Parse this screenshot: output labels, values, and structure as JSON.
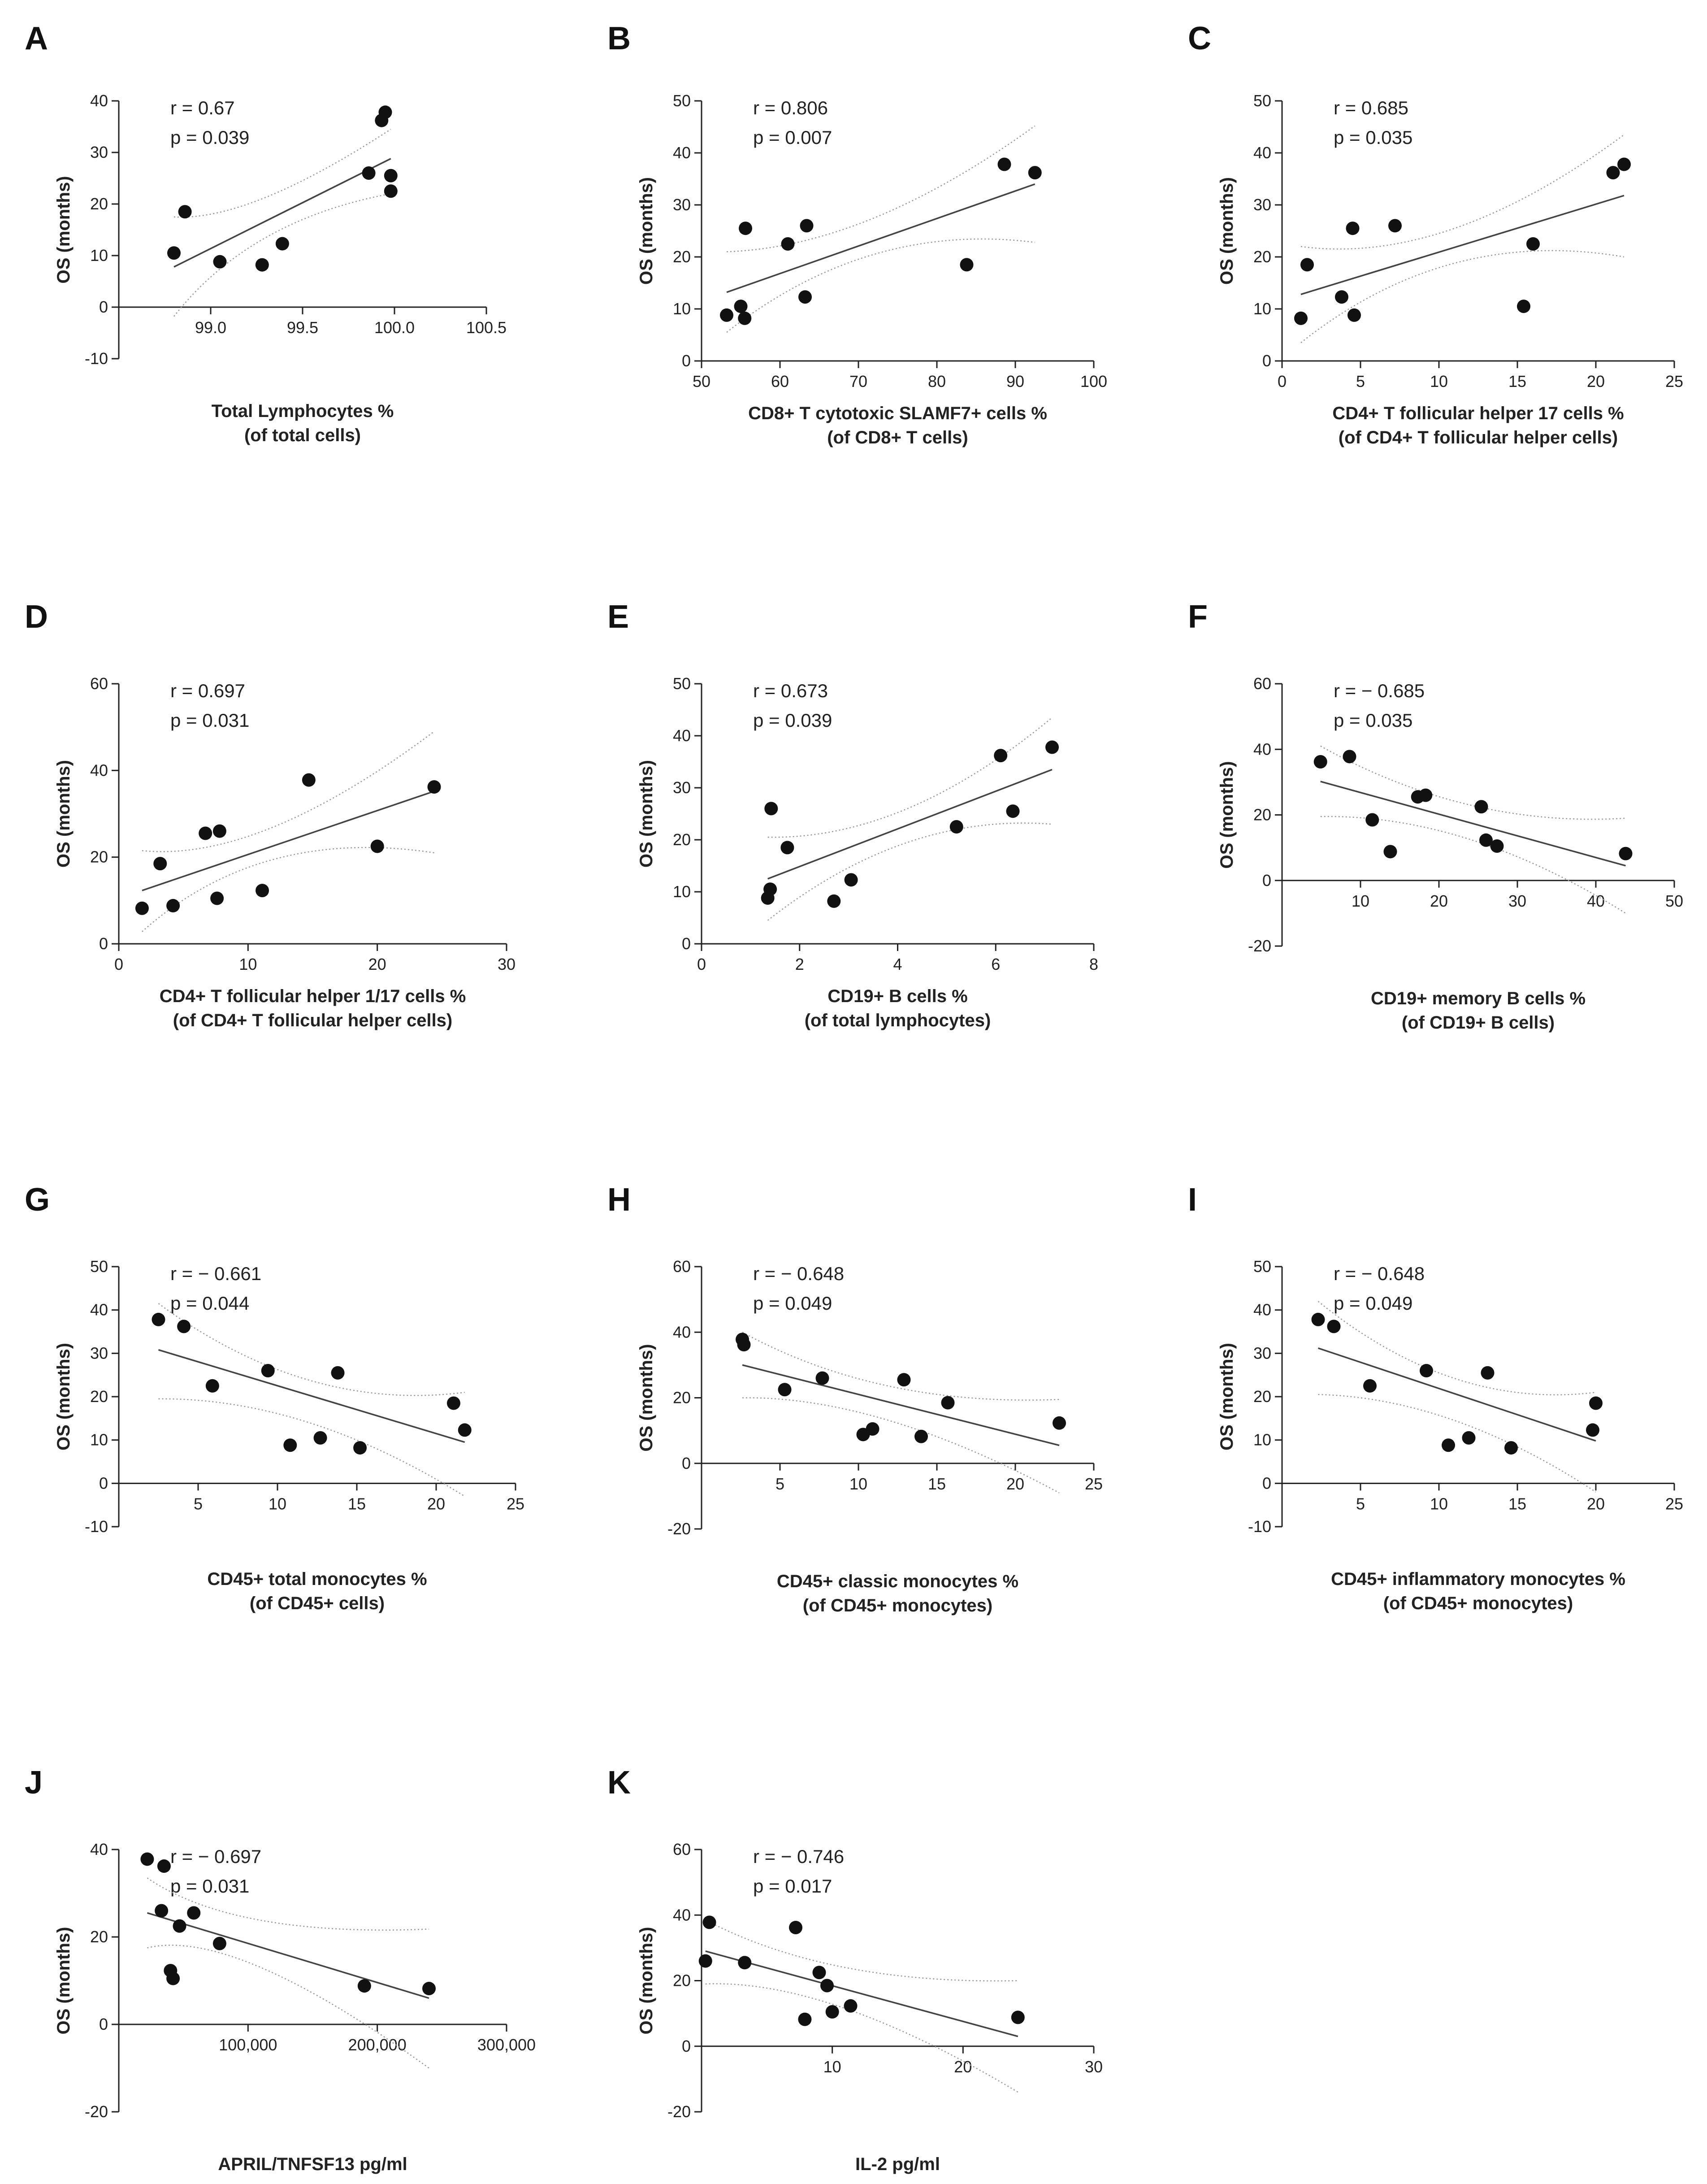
{
  "chart_data": [
    {
      "panel": "A",
      "type": "scatter",
      "stats": [
        "r = 0.67",
        "p = 0.039"
      ],
      "ylabel": "OS (months)",
      "xlabel": [
        "Total Lymphocytes %",
        "(of total cells)"
      ],
      "xlim": [
        98.5,
        100.5
      ],
      "ylim": [
        -10,
        40
      ],
      "xticks": [
        99.0,
        99.5,
        100.0,
        100.5
      ],
      "xtick_labels": [
        "99.0",
        "99.5",
        "100.0",
        "100.5"
      ],
      "yticks": [
        -10,
        0,
        10,
        20,
        30,
        40
      ],
      "ytick_labels": [
        "-10",
        "0",
        "10",
        "20",
        "30",
        "40"
      ],
      "x": [
        98.8,
        98.86,
        99.05,
        99.28,
        99.39,
        99.86,
        99.93,
        99.95,
        99.98,
        99.98
      ],
      "y": [
        10.5,
        18.5,
        8.8,
        8.2,
        12.3,
        26.0,
        36.2,
        37.8,
        22.5,
        25.5
      ],
      "fit": [
        [
          98.8,
          7.8
        ],
        [
          99.98,
          28.8
        ]
      ],
      "ci_upper": [
        [
          98.8,
          17.5
        ],
        [
          99.3,
          21.3
        ],
        [
          99.98,
          34.5
        ]
      ],
      "ci_lower": [
        [
          98.8,
          -1.8
        ],
        [
          99.3,
          13.5
        ],
        [
          99.98,
          22.0
        ]
      ]
    },
    {
      "panel": "B",
      "type": "scatter",
      "stats": [
        "r = 0.806",
        "p = 0.007"
      ],
      "ylabel": "OS (months)",
      "xlabel": [
        "CD8+ T cytotoxic SLAMF7+ cells %",
        "(of CD8+ T cells)"
      ],
      "xlim": [
        50,
        100
      ],
      "ylim": [
        0,
        50
      ],
      "xticks": [
        50,
        60,
        70,
        80,
        90,
        100
      ],
      "xtick_labels": [
        "50",
        "60",
        "70",
        "80",
        "90",
        "100"
      ],
      "yticks": [
        0,
        10,
        20,
        30,
        40,
        50
      ],
      "ytick_labels": [
        "0",
        "10",
        "20",
        "30",
        "40",
        "50"
      ],
      "x": [
        53.2,
        55.0,
        55.5,
        55.6,
        61.0,
        63.2,
        63.4,
        83.8,
        88.6,
        92.5
      ],
      "y": [
        8.8,
        10.5,
        8.2,
        25.5,
        22.5,
        12.3,
        26.0,
        18.5,
        37.8,
        36.2
      ],
      "fit": [
        [
          53.2,
          13.2
        ],
        [
          92.5,
          34.0
        ]
      ],
      "ci_upper": [
        [
          53.2,
          21.0
        ],
        [
          72,
          27.5
        ],
        [
          92.5,
          45.2
        ]
      ],
      "ci_lower": [
        [
          53.2,
          5.5
        ],
        [
          72,
          20.5
        ],
        [
          92.5,
          22.8
        ]
      ]
    },
    {
      "panel": "C",
      "type": "scatter",
      "stats": [
        "r = 0.685",
        "p = 0.035"
      ],
      "ylabel": "OS (months)",
      "xlabel": [
        "CD4+ T follicular helper 17 cells %",
        "(of CD4+ T follicular helper cells)"
      ],
      "xlim": [
        0,
        25
      ],
      "ylim": [
        0,
        50
      ],
      "xticks": [
        0,
        5,
        10,
        15,
        20,
        25
      ],
      "xtick_labels": [
        "0",
        "5",
        "10",
        "15",
        "20",
        "25"
      ],
      "yticks": [
        0,
        10,
        20,
        30,
        40,
        50
      ],
      "ytick_labels": [
        "0",
        "10",
        "20",
        "30",
        "40",
        "50"
      ],
      "x": [
        1.2,
        1.6,
        3.8,
        4.5,
        4.6,
        7.2,
        15.4,
        16.0,
        21.1,
        21.8
      ],
      "y": [
        8.2,
        18.5,
        12.3,
        25.5,
        8.8,
        26.0,
        10.5,
        22.5,
        36.2,
        37.8
      ],
      "fit": [
        [
          1.2,
          12.8
        ],
        [
          21.8,
          31.8
        ]
      ],
      "ci_upper": [
        [
          1.2,
          22.0
        ],
        [
          11,
          25.5
        ],
        [
          21.8,
          43.5
        ]
      ],
      "ci_lower": [
        [
          1.2,
          3.5
        ],
        [
          11,
          18.8
        ],
        [
          21.8,
          20.0
        ]
      ]
    },
    {
      "panel": "D",
      "type": "scatter",
      "stats": [
        "r = 0.697",
        "p = 0.031"
      ],
      "ylabel": "OS (months)",
      "xlabel": [
        "CD4+ T follicular helper 1/17 cells %",
        "(of CD4+ T follicular helper cells)"
      ],
      "xlim": [
        0,
        30
      ],
      "ylim": [
        0,
        60
      ],
      "xticks": [
        0,
        10,
        20,
        30
      ],
      "xtick_labels": [
        "0",
        "10",
        "20",
        "30"
      ],
      "yticks": [
        0,
        20,
        40,
        60
      ],
      "ytick_labels": [
        "0",
        "20",
        "40",
        "60"
      ],
      "x": [
        1.8,
        3.2,
        4.2,
        6.7,
        7.6,
        7.8,
        11.1,
        14.7,
        20.0,
        24.4
      ],
      "y": [
        8.2,
        18.5,
        8.8,
        25.5,
        10.5,
        26.0,
        12.3,
        37.8,
        22.5,
        36.2
      ],
      "fit": [
        [
          1.8,
          12.3
        ],
        [
          24.4,
          35.2
        ]
      ],
      "ci_upper": [
        [
          1.8,
          21.5
        ],
        [
          12,
          27.0
        ],
        [
          24.4,
          49.0
        ]
      ],
      "ci_lower": [
        [
          1.8,
          2.8
        ],
        [
          12,
          19.5
        ],
        [
          24.4,
          21.0
        ]
      ]
    },
    {
      "panel": "E",
      "type": "scatter",
      "stats": [
        "r = 0.673",
        "p = 0.039"
      ],
      "ylabel": "OS (months)",
      "xlabel": [
        "CD19+ B cells %",
        "(of total lymphocytes)"
      ],
      "xlim": [
        0,
        8
      ],
      "ylim": [
        0,
        50
      ],
      "xticks": [
        0,
        2,
        4,
        6,
        8
      ],
      "xtick_labels": [
        "0",
        "2",
        "4",
        "6",
        "8"
      ],
      "yticks": [
        0,
        10,
        20,
        30,
        40,
        50
      ],
      "ytick_labels": [
        "0",
        "10",
        "20",
        "30",
        "40",
        "50"
      ],
      "x": [
        1.35,
        1.4,
        1.42,
        1.75,
        2.7,
        3.05,
        5.2,
        6.1,
        6.35,
        7.15
      ],
      "y": [
        8.8,
        10.5,
        26.0,
        18.5,
        8.2,
        12.3,
        22.5,
        36.2,
        25.5,
        37.8
      ],
      "fit": [
        [
          1.35,
          12.5
        ],
        [
          7.15,
          33.5
        ]
      ],
      "ci_upper": [
        [
          1.35,
          20.5
        ],
        [
          4.2,
          26.0
        ],
        [
          7.15,
          43.5
        ]
      ],
      "ci_lower": [
        [
          1.35,
          4.5
        ],
        [
          4.2,
          19.5
        ],
        [
          7.15,
          23.0
        ]
      ]
    },
    {
      "panel": "F",
      "type": "scatter",
      "stats": [
        "r = − 0.685",
        "p = 0.035"
      ],
      "ylabel": "OS (months)",
      "xlabel": [
        "CD19+ memory B cells %",
        "(of CD19+ B cells)"
      ],
      "xlim": [
        0,
        50
      ],
      "ylim": [
        -20,
        60
      ],
      "xticks": [
        10,
        20,
        30,
        40,
        50
      ],
      "xtick_labels": [
        "10",
        "20",
        "30",
        "40",
        "50"
      ],
      "yticks": [
        -20,
        0,
        20,
        40,
        60
      ],
      "ytick_labels": [
        "-20",
        "0",
        "20",
        "40",
        "60"
      ],
      "x": [
        4.9,
        8.6,
        11.5,
        13.8,
        17.3,
        18.3,
        25.4,
        26.0,
        27.4,
        43.8
      ],
      "y": [
        36.2,
        37.8,
        18.5,
        8.8,
        25.5,
        26.0,
        22.5,
        12.3,
        10.5,
        8.2
      ],
      "fit": [
        [
          4.9,
          30.2
        ],
        [
          43.8,
          4.5
        ]
      ],
      "ci_upper": [
        [
          4.9,
          41.0
        ],
        [
          24,
          23.0
        ],
        [
          43.8,
          19.0
        ]
      ],
      "ci_lower": [
        [
          4.9,
          19.5
        ],
        [
          24,
          12.5
        ],
        [
          43.8,
          -10.0
        ]
      ]
    },
    {
      "panel": "G",
      "type": "scatter",
      "stats": [
        "r = − 0.661",
        "p = 0.044"
      ],
      "ylabel": "OS (months)",
      "xlabel": [
        "CD45+ total monocytes %",
        "(of CD45+ cells)"
      ],
      "xlim": [
        0,
        25
      ],
      "ylim": [
        -10,
        50
      ],
      "xticks": [
        5,
        10,
        15,
        20,
        25
      ],
      "xtick_labels": [
        "5",
        "10",
        "15",
        "20",
        "25"
      ],
      "yticks": [
        -10,
        0,
        10,
        20,
        30,
        40,
        50
      ],
      "ytick_labels": [
        "-10",
        "0",
        "10",
        "20",
        "30",
        "40",
        "50"
      ],
      "x": [
        2.5,
        4.1,
        5.9,
        9.4,
        10.8,
        12.7,
        13.8,
        15.2,
        21.1,
        21.8
      ],
      "y": [
        37.8,
        36.2,
        22.5,
        26.0,
        8.8,
        10.5,
        25.5,
        8.2,
        18.5,
        12.3
      ],
      "fit": [
        [
          2.5,
          30.8
        ],
        [
          21.8,
          9.5
        ]
      ],
      "ci_upper": [
        [
          2.5,
          41.5
        ],
        [
          12,
          23.8
        ],
        [
          21.8,
          21.0
        ]
      ],
      "ci_lower": [
        [
          2.5,
          19.5
        ],
        [
          12,
          14.0
        ],
        [
          21.8,
          -3.0
        ]
      ]
    },
    {
      "panel": "H",
      "type": "scatter",
      "stats": [
        "r = − 0.648",
        "p = 0.049"
      ],
      "ylabel": "OS (months)",
      "xlabel": [
        "CD45+ classic monocytes %",
        "(of CD45+ monocytes)"
      ],
      "xlim": [
        0,
        25
      ],
      "ylim": [
        -20,
        60
      ],
      "xticks": [
        5,
        10,
        15,
        20,
        25
      ],
      "xtick_labels": [
        "5",
        "10",
        "15",
        "20",
        "25"
      ],
      "yticks": [
        -20,
        0,
        20,
        40,
        60
      ],
      "ytick_labels": [
        "-20",
        "0",
        "20",
        "40",
        "60"
      ],
      "x": [
        2.6,
        2.7,
        5.3,
        7.7,
        10.3,
        10.9,
        12.9,
        14.0,
        15.7,
        22.8
      ],
      "y": [
        37.8,
        36.2,
        22.5,
        26.0,
        8.8,
        10.5,
        25.5,
        8.2,
        18.5,
        12.3
      ],
      "fit": [
        [
          2.6,
          30.0
        ],
        [
          22.8,
          5.5
        ]
      ],
      "ci_upper": [
        [
          2.6,
          40.0
        ],
        [
          12,
          23.5
        ],
        [
          22.8,
          19.5
        ]
      ],
      "ci_lower": [
        [
          2.6,
          20.0
        ],
        [
          12,
          13.0
        ],
        [
          22.8,
          -9.0
        ]
      ]
    },
    {
      "panel": "I",
      "type": "scatter",
      "stats": [
        "r = − 0.648",
        "p = 0.049"
      ],
      "ylabel": "OS (months)",
      "xlabel": [
        "CD45+ inflammatory monocytes %",
        "(of CD45+ monocytes)"
      ],
      "xlim": [
        0,
        25
      ],
      "ylim": [
        -10,
        50
      ],
      "xticks": [
        5,
        10,
        15,
        20,
        25
      ],
      "xtick_labels": [
        "5",
        "10",
        "15",
        "20",
        "25"
      ],
      "yticks": [
        -10,
        0,
        10,
        20,
        30,
        40,
        50
      ],
      "ytick_labels": [
        "-10",
        "0",
        "10",
        "20",
        "30",
        "40",
        "50"
      ],
      "x": [
        2.3,
        3.3,
        5.6,
        9.2,
        10.6,
        11.9,
        13.1,
        14.6,
        19.8,
        20.0
      ],
      "y": [
        37.8,
        36.2,
        22.5,
        26.0,
        8.8,
        10.5,
        25.5,
        8.2,
        12.3,
        18.5
      ],
      "fit": [
        [
          2.3,
          31.2
        ],
        [
          20.0,
          9.8
        ]
      ],
      "ci_upper": [
        [
          2.3,
          42.0
        ],
        [
          11,
          24.2
        ],
        [
          20.0,
          21.0
        ]
      ],
      "ci_lower": [
        [
          2.3,
          20.5
        ],
        [
          11,
          14.5
        ],
        [
          20.0,
          -2.0
        ]
      ]
    },
    {
      "panel": "J",
      "type": "scatter",
      "stats": [
        "r = − 0.697",
        "p = 0.031"
      ],
      "ylabel": "OS (months)",
      "xlabel": [
        "APRIL/TNFSF13 pg/ml"
      ],
      "xlim": [
        0,
        300000
      ],
      "ylim": [
        -20,
        40
      ],
      "xticks": [
        100000,
        200000,
        300000
      ],
      "xtick_labels": [
        "100,000",
        "200,000",
        "300,000"
      ],
      "yticks": [
        -20,
        0,
        20,
        40
      ],
      "ytick_labels": [
        "-20",
        "0",
        "20",
        "40"
      ],
      "x": [
        22000,
        33000,
        35000,
        40000,
        42000,
        47000,
        58000,
        78000,
        190000,
        240000
      ],
      "y": [
        37.8,
        26.0,
        36.2,
        12.3,
        10.5,
        22.5,
        25.5,
        18.5,
        8.8,
        8.2
      ],
      "fit": [
        [
          22000,
          25.5
        ],
        [
          240000,
          6.0
        ]
      ],
      "ci_upper": [
        [
          22000,
          33.5
        ],
        [
          110000,
          23.8
        ],
        [
          240000,
          21.8
        ]
      ],
      "ci_lower": [
        [
          22000,
          17.5
        ],
        [
          110000,
          13.0
        ],
        [
          240000,
          -10.0
        ]
      ]
    },
    {
      "panel": "K",
      "type": "scatter",
      "stats": [
        "r = − 0.746",
        "p = 0.017"
      ],
      "ylabel": "OS (months)",
      "xlabel": [
        "IL-2 pg/ml"
      ],
      "xlim": [
        0,
        30
      ],
      "ylim": [
        -20,
        60
      ],
      "xticks": [
        10,
        20,
        30
      ],
      "xtick_labels": [
        "10",
        "20",
        "30"
      ],
      "yticks": [
        -20,
        0,
        20,
        40,
        60
      ],
      "ytick_labels": [
        "-20",
        "0",
        "20",
        "40",
        "60"
      ],
      "x": [
        0.3,
        0.6,
        3.3,
        7.2,
        7.9,
        9.0,
        9.6,
        10.0,
        11.4,
        24.2
      ],
      "y": [
        26.0,
        37.8,
        25.5,
        36.2,
        8.2,
        22.5,
        18.5,
        10.5,
        12.3,
        8.8
      ],
      "fit": [
        [
          0.3,
          29.0
        ],
        [
          24.2,
          3.0
        ]
      ],
      "ci_upper": [
        [
          0.3,
          38.5
        ],
        [
          11,
          24.0
        ],
        [
          24.2,
          20.0
        ]
      ],
      "ci_lower": [
        [
          0.3,
          19.0
        ],
        [
          11,
          11.5
        ],
        [
          24.2,
          -14.0
        ]
      ]
    }
  ]
}
